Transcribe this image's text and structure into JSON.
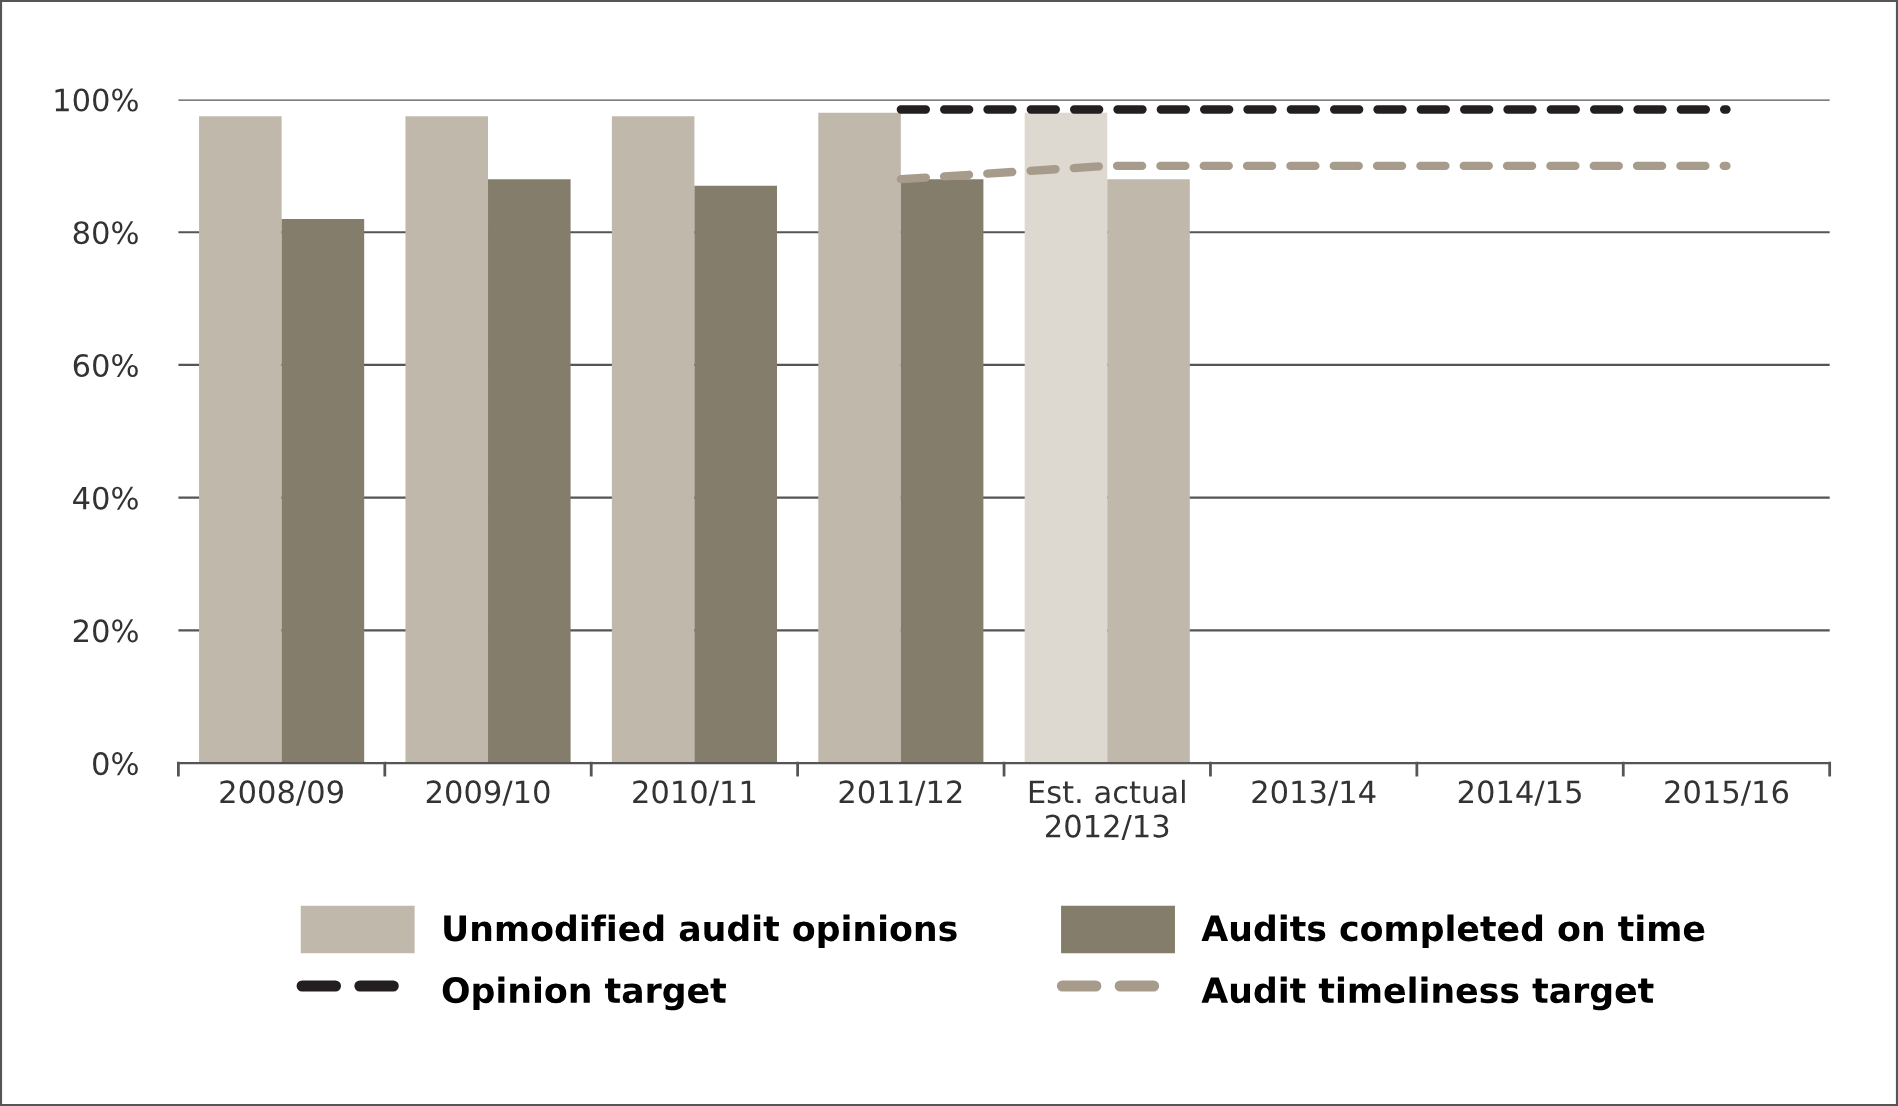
{
  "chart_data": {
    "type": "bar",
    "categories": [
      "2008/09",
      "2009/10",
      "2010/11",
      "2011/12",
      "Est. actual\n2012/13",
      "2013/14",
      "2014/15",
      "2015/16"
    ],
    "series": [
      {
        "name": "Unmodified audit opinions",
        "color": "#c1b8ac",
        "colors": [
          "#c1b8ac",
          "#c1b8ac",
          "#c1b8ac",
          "#c1b8ac",
          "#ddd8d0",
          "#c1b8ac",
          "#c1b8ac",
          "#c1b8ac"
        ],
        "values": [
          97.5,
          97.5,
          97.5,
          98,
          98,
          null,
          null,
          null
        ]
      },
      {
        "name": "Audits completed on time",
        "color": "#857d6b",
        "colors": [
          "#857d6b",
          "#857d6b",
          "#857d6b",
          "#857d6b",
          "#c1b8ac",
          "#857d6b",
          "#857d6b",
          "#857d6b"
        ],
        "values": [
          82,
          88,
          87,
          88,
          88,
          null,
          null,
          null
        ]
      },
      {
        "name": "Opinion target",
        "type": "line",
        "color": "#231f20",
        "values": [
          null,
          null,
          null,
          98.5,
          98.5,
          98.5,
          98.5,
          98.5
        ]
      },
      {
        "name": "Audit timeliness target",
        "type": "line",
        "color": "#a79c8c",
        "values": [
          null,
          null,
          null,
          88,
          90,
          90,
          90,
          90
        ]
      }
    ],
    "ylim": [
      0,
      100
    ],
    "yticks": [
      {
        "value": 0,
        "label": "0%"
      },
      {
        "value": 20,
        "label": "20%"
      },
      {
        "value": 40,
        "label": "40%"
      },
      {
        "value": 60,
        "label": "60%"
      },
      {
        "value": 80,
        "label": "80%"
      },
      {
        "value": 100,
        "label": "100%"
      }
    ],
    "grid": "y",
    "legend": "bottom",
    "line_style": "dashed",
    "marker": "none"
  }
}
